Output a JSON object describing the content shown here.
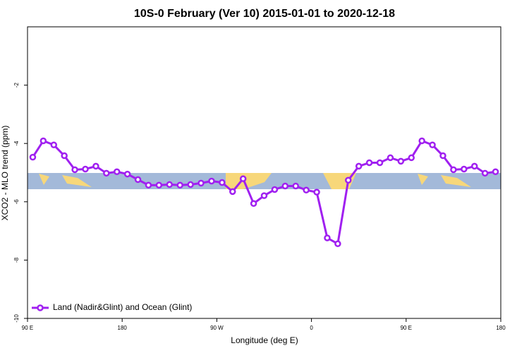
{
  "chart_data": {
    "type": "line",
    "title": "10S-0 February (Ver 10)   2015-01-01 to 2020-12-18",
    "x_label": "Longitude (deg E)",
    "y_label": "XCO2 - MLO trend (ppm)",
    "xlim": [
      90,
      540
    ],
    "xticks": [
      {
        "value": 90,
        "label": "90 E"
      },
      180,
      {
        "value": 270,
        "label": "90 W"
      },
      {
        "value": 360,
        "label": "0"
      },
      {
        "value": 450,
        "label": "90 E"
      },
      {
        "value": 540,
        "label": "180"
      }
    ],
    "ylim": [
      -10,
      0
    ],
    "yticks": [
      -10,
      -8,
      -6,
      -4,
      -2
    ],
    "legend_position": "lower left",
    "x": [
      95,
      105,
      115,
      125,
      135,
      145,
      155,
      165,
      175,
      185,
      195,
      205,
      215,
      225,
      235,
      245,
      255,
      265,
      275,
      285,
      295,
      305,
      315,
      325,
      335,
      345,
      355,
      365,
      375,
      385,
      395,
      405,
      415,
      425,
      435,
      445,
      455,
      465,
      475,
      485,
      495,
      505,
      515,
      525,
      535
    ],
    "series": [
      {
        "name": "Land (Nadir&Glint) and Ocean (Glint)",
        "color": "#a020f0",
        "values": [
          -4.47,
          -3.91,
          -4.05,
          -4.42,
          -4.9,
          -4.88,
          -4.78,
          -5.02,
          -4.97,
          -5.05,
          -5.24,
          -5.43,
          -5.43,
          -5.41,
          -5.43,
          -5.41,
          -5.36,
          -5.29,
          -5.34,
          -5.65,
          -5.21,
          -6.06,
          -5.79,
          -5.58,
          -5.46,
          -5.46,
          -5.6,
          -5.67,
          -7.24,
          -7.44,
          -5.26,
          -4.78,
          -4.66,
          -4.66,
          -4.49,
          -4.61,
          -4.49,
          -3.91,
          -4.05,
          -4.42,
          -4.9,
          -4.88,
          -4.78,
          -5.02,
          -4.97
        ]
      }
    ]
  }
}
